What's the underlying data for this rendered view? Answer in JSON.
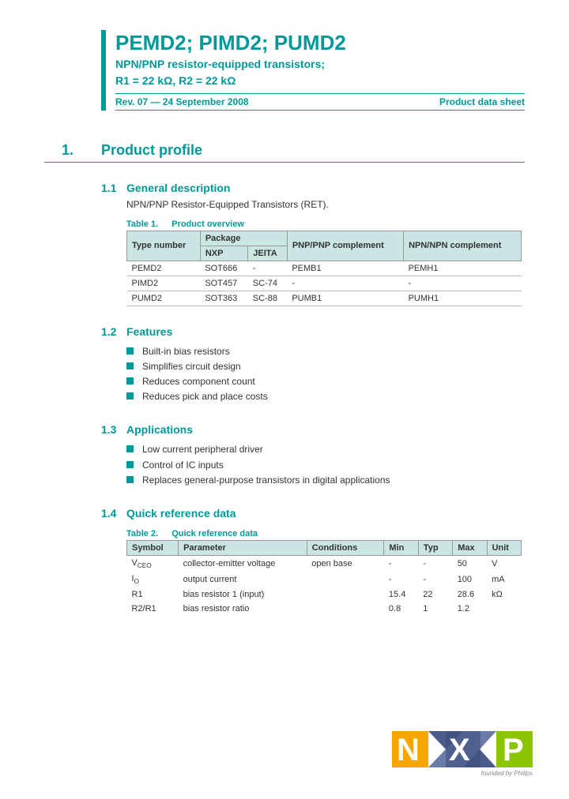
{
  "header": {
    "title": "PEMD2; PIMD2; PUMD2",
    "subtitle_line1": "NPN/PNP resistor-equipped transistors;",
    "subtitle_line2": "R1 = 22 kΩ, R2 = 22 kΩ",
    "rev": "Rev. 07 — 24 September 2008",
    "doc_type": "Product data sheet"
  },
  "section1": {
    "num": "1.",
    "title": "Product profile"
  },
  "s11": {
    "num": "1.1",
    "title": "General description",
    "text": "NPN/PNP Resistor-Equipped Transistors (RET).",
    "table_caption_num": "Table 1.",
    "table_caption_title": "Product overview",
    "headers": {
      "type": "Type number",
      "package": "Package",
      "nxp": "NXP",
      "jeita": "JEITA",
      "pnp": "PNP/PNP complement",
      "npn": "NPN/NPN complement"
    },
    "rows": [
      {
        "type": "PEMD2",
        "nxp": "SOT666",
        "jeita": "-",
        "pnp": "PEMB1",
        "npn": "PEMH1"
      },
      {
        "type": "PIMD2",
        "nxp": "SOT457",
        "jeita": "SC-74",
        "pnp": "-",
        "npn": "-"
      },
      {
        "type": "PUMD2",
        "nxp": "SOT363",
        "jeita": "SC-88",
        "pnp": "PUMB1",
        "npn": "PUMH1"
      }
    ]
  },
  "s12": {
    "num": "1.2",
    "title": "Features",
    "items": [
      "Built-in bias resistors",
      "Simplifies circuit design",
      "Reduces component count",
      "Reduces pick and place costs"
    ]
  },
  "s13": {
    "num": "1.3",
    "title": "Applications",
    "items": [
      "Low current peripheral driver",
      "Control of IC inputs",
      "Replaces general-purpose transistors in digital applications"
    ]
  },
  "s14": {
    "num": "1.4",
    "title": "Quick reference data",
    "table_caption_num": "Table 2.",
    "table_caption_title": "Quick reference data",
    "headers": {
      "symbol": "Symbol",
      "parameter": "Parameter",
      "conditions": "Conditions",
      "min": "Min",
      "typ": "Typ",
      "max": "Max",
      "unit": "Unit"
    },
    "rows": [
      {
        "symbol": "V<sub>CEO</sub>",
        "parameter": "collector-emitter voltage",
        "conditions": "open base",
        "min": "-",
        "typ": "-",
        "max": "50",
        "unit": "V"
      },
      {
        "symbol": "I<sub>O</sub>",
        "parameter": "output current",
        "conditions": "",
        "min": "-",
        "typ": "-",
        "max": "100",
        "unit": "mA"
      },
      {
        "symbol": "R1",
        "parameter": "bias resistor 1 (input)",
        "conditions": "",
        "min": "15.4",
        "typ": "22",
        "max": "28.6",
        "unit": "kΩ"
      },
      {
        "symbol": "R2/R1",
        "parameter": "bias resistor ratio",
        "conditions": "",
        "min": "0.8",
        "typ": "1",
        "max": "1.2",
        "unit": ""
      }
    ]
  },
  "logo": {
    "tagline": "founded by Philips"
  },
  "colors": {
    "accent": "#009999",
    "header_bg": "#cbe5e5"
  }
}
